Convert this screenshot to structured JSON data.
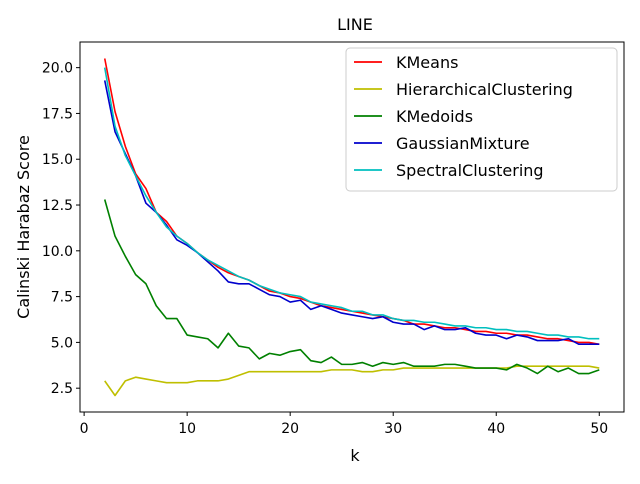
{
  "chart_data": {
    "type": "line",
    "title": "LINE",
    "xlabel": "k",
    "ylabel": "Calinski Harabaz Score",
    "xlim": [
      -0.4,
      52.4
    ],
    "ylim": [
      1.2,
      21.4
    ],
    "xticks": [
      0,
      10,
      20,
      30,
      40,
      50
    ],
    "xtick_labels": [
      "0",
      "10",
      "20",
      "30",
      "40",
      "50"
    ],
    "yticks": [
      2.5,
      5.0,
      7.5,
      10.0,
      12.5,
      15.0,
      17.5,
      20.0
    ],
    "ytick_labels": [
      "2.5",
      "5.0",
      "7.5",
      "10.0",
      "12.5",
      "15.0",
      "17.5",
      "20.0"
    ],
    "grid": false,
    "legend_position": "top-right",
    "x": [
      2,
      3,
      4,
      5,
      6,
      7,
      8,
      9,
      10,
      11,
      12,
      13,
      14,
      15,
      16,
      17,
      18,
      19,
      20,
      21,
      22,
      23,
      24,
      25,
      26,
      27,
      28,
      29,
      30,
      31,
      32,
      33,
      34,
      35,
      36,
      37,
      38,
      39,
      40,
      41,
      42,
      43,
      44,
      45,
      46,
      47,
      48,
      49,
      50
    ],
    "series": [
      {
        "name": "KMeans",
        "color": "#ff0000",
        "values": [
          20.5,
          17.6,
          15.7,
          14.2,
          13.4,
          12.1,
          11.6,
          10.8,
          10.4,
          9.9,
          9.5,
          9.1,
          8.8,
          8.6,
          8.4,
          8.1,
          7.8,
          7.7,
          7.5,
          7.4,
          7.2,
          7.0,
          6.9,
          6.8,
          6.7,
          6.6,
          6.5,
          6.4,
          6.3,
          6.2,
          6.0,
          6.0,
          5.9,
          5.8,
          5.8,
          5.7,
          5.6,
          5.6,
          5.5,
          5.5,
          5.4,
          5.4,
          5.3,
          5.2,
          5.2,
          5.1,
          5.0,
          5.0,
          4.9
        ]
      },
      {
        "name": "HierarchicalClustering",
        "color": "#bfbf00",
        "values": [
          2.9,
          2.1,
          2.9,
          3.1,
          3.0,
          2.9,
          2.8,
          2.8,
          2.8,
          2.9,
          2.9,
          2.9,
          3.0,
          3.2,
          3.4,
          3.4,
          3.4,
          3.4,
          3.4,
          3.4,
          3.4,
          3.4,
          3.5,
          3.5,
          3.5,
          3.4,
          3.4,
          3.5,
          3.5,
          3.6,
          3.6,
          3.6,
          3.6,
          3.6,
          3.6,
          3.6,
          3.6,
          3.6,
          3.6,
          3.6,
          3.7,
          3.7,
          3.7,
          3.7,
          3.7,
          3.7,
          3.7,
          3.7,
          3.6
        ]
      },
      {
        "name": "KMedoids",
        "color": "#008000",
        "values": [
          12.8,
          10.8,
          9.7,
          8.7,
          8.2,
          7.0,
          6.3,
          6.3,
          5.4,
          5.3,
          5.2,
          4.7,
          5.5,
          4.8,
          4.7,
          4.1,
          4.4,
          4.3,
          4.5,
          4.6,
          4.0,
          3.9,
          4.2,
          3.8,
          3.8,
          3.9,
          3.7,
          3.9,
          3.8,
          3.9,
          3.7,
          3.7,
          3.7,
          3.8,
          3.8,
          3.7,
          3.6,
          3.6,
          3.6,
          3.5,
          3.8,
          3.6,
          3.3,
          3.7,
          3.4,
          3.6,
          3.3,
          3.3,
          3.5
        ]
      },
      {
        "name": "GaussianMixture",
        "color": "#0000cc",
        "values": [
          19.3,
          16.5,
          15.3,
          14.1,
          12.6,
          12.1,
          11.4,
          10.6,
          10.3,
          9.9,
          9.4,
          8.9,
          8.3,
          8.2,
          8.2,
          7.9,
          7.6,
          7.5,
          7.2,
          7.3,
          6.8,
          7.0,
          6.8,
          6.6,
          6.5,
          6.4,
          6.3,
          6.4,
          6.1,
          6.0,
          6.0,
          5.7,
          5.9,
          5.7,
          5.7,
          5.8,
          5.5,
          5.4,
          5.4,
          5.2,
          5.4,
          5.3,
          5.1,
          5.1,
          5.1,
          5.2,
          4.9,
          4.9,
          4.9
        ]
      },
      {
        "name": "SpectralClustering",
        "color": "#00bfbf",
        "values": [
          20.0,
          16.8,
          15.2,
          14.1,
          13.0,
          12.1,
          11.3,
          10.8,
          10.4,
          9.9,
          9.5,
          9.2,
          8.9,
          8.6,
          8.4,
          8.1,
          7.9,
          7.7,
          7.6,
          7.5,
          7.2,
          7.1,
          7.0,
          6.9,
          6.7,
          6.7,
          6.5,
          6.5,
          6.3,
          6.2,
          6.2,
          6.1,
          6.1,
          6.0,
          5.9,
          5.9,
          5.8,
          5.8,
          5.7,
          5.7,
          5.6,
          5.6,
          5.5,
          5.4,
          5.4,
          5.3,
          5.3,
          5.2,
          5.2
        ]
      }
    ]
  }
}
